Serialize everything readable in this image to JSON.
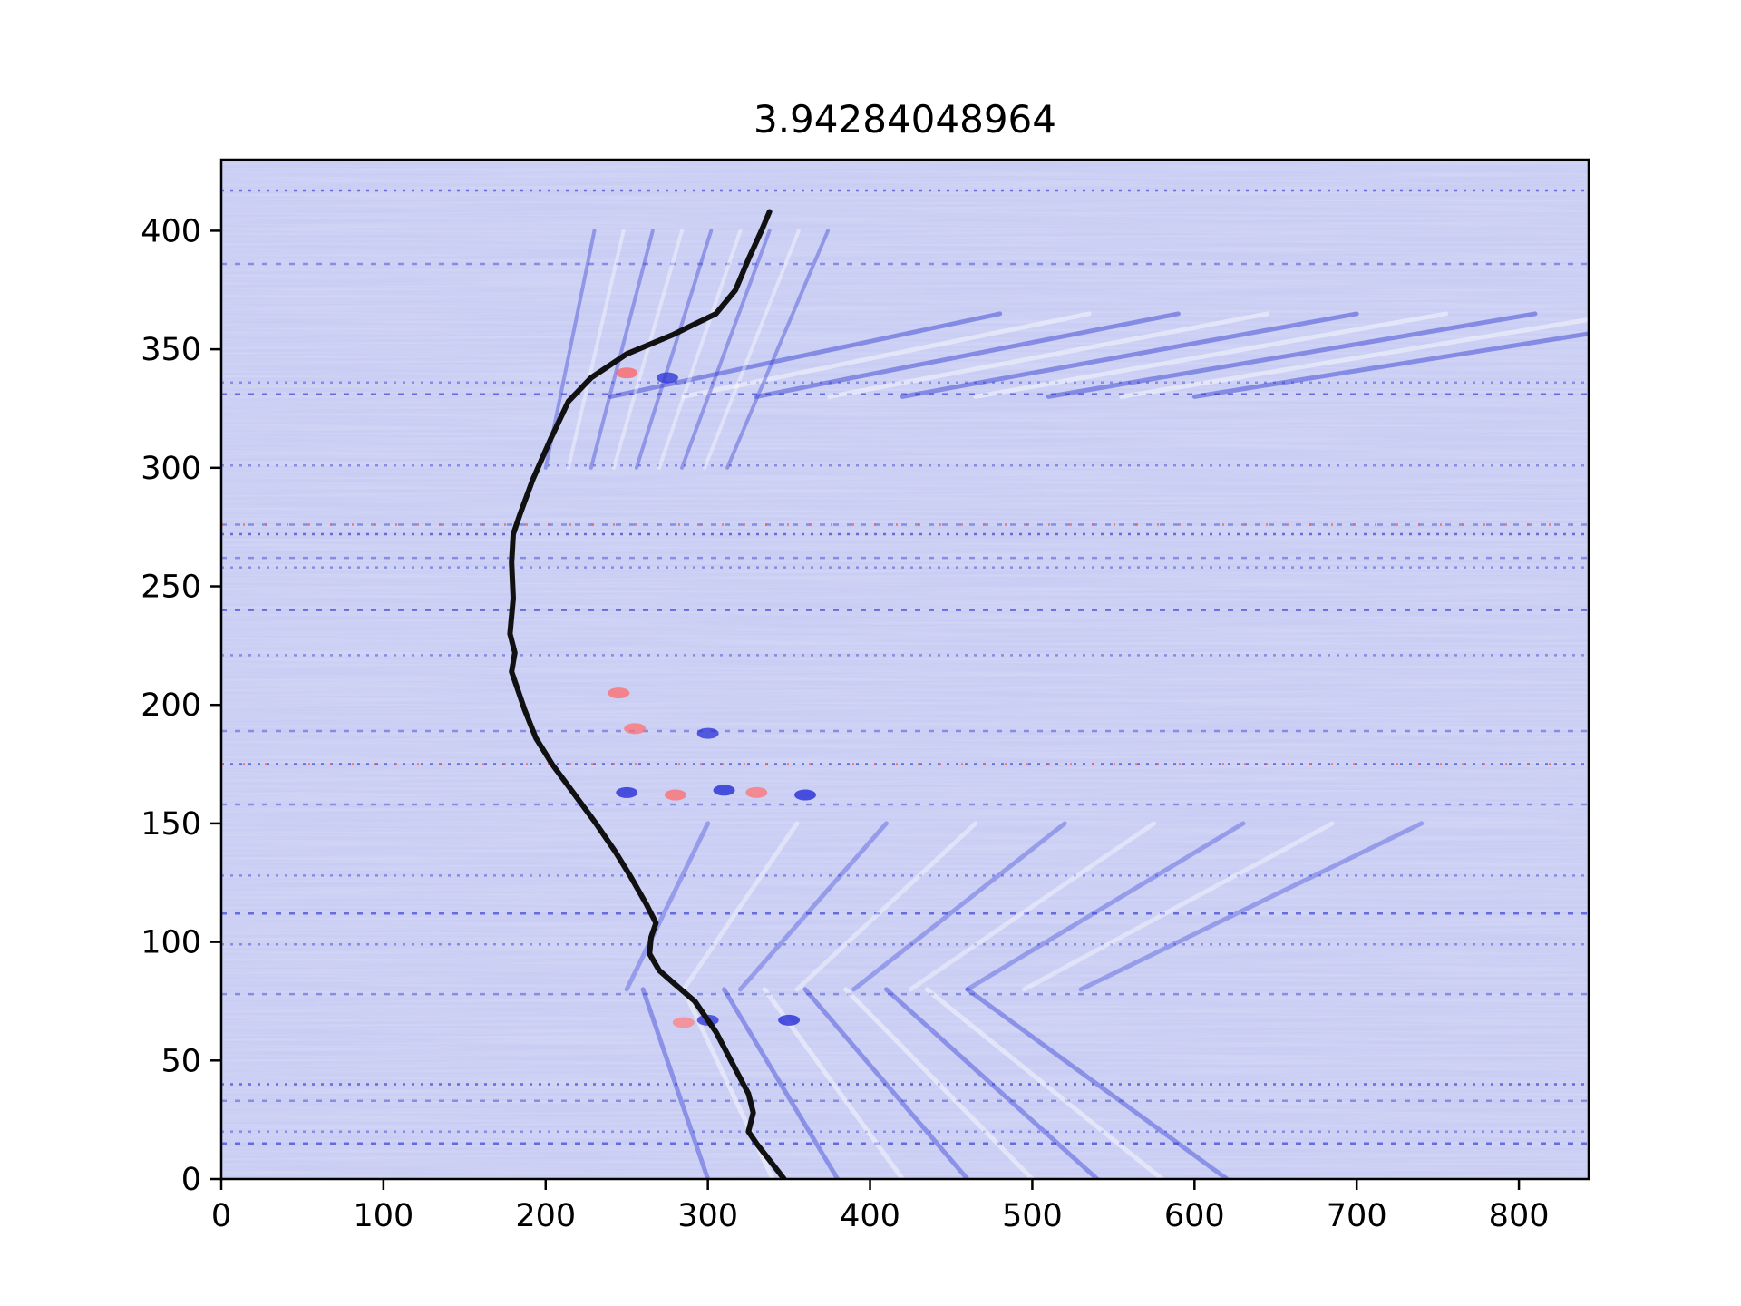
{
  "chart_data": {
    "type": "heatmap",
    "title": "3.94284048964",
    "xlabel": "",
    "ylabel": "",
    "xlim": [
      0,
      843
    ],
    "ylim": [
      0,
      430
    ],
    "x_ticks": [
      "0",
      "100",
      "200",
      "300",
      "400",
      "500",
      "600",
      "700",
      "800"
    ],
    "y_ticks": [
      "0",
      "50",
      "100",
      "150",
      "200",
      "250",
      "300",
      "350",
      "400"
    ],
    "grid": false,
    "legend": "none",
    "colormap": "bwr",
    "colors": {
      "low": "#0000ff",
      "mid": "#ffffff",
      "high": "#ff0000",
      "background": "#c9cdf3",
      "line": "#111111"
    },
    "overlay_line": {
      "type": "line",
      "points": [
        [
          347,
          0
        ],
        [
          338,
          8
        ],
        [
          330,
          15
        ],
        [
          325,
          20
        ],
        [
          328,
          28
        ],
        [
          325,
          36
        ],
        [
          318,
          45
        ],
        [
          305,
          62
        ],
        [
          292,
          75
        ],
        [
          280,
          82
        ],
        [
          270,
          88
        ],
        [
          264,
          95
        ],
        [
          265,
          102
        ],
        [
          268,
          108
        ],
        [
          262,
          116
        ],
        [
          252,
          128
        ],
        [
          243,
          138
        ],
        [
          231,
          150
        ],
        [
          218,
          162
        ],
        [
          204,
          175
        ],
        [
          194,
          186
        ],
        [
          187,
          198
        ],
        [
          182,
          208
        ],
        [
          179,
          214
        ],
        [
          181,
          222
        ],
        [
          178,
          230
        ],
        [
          180,
          245
        ],
        [
          179,
          260
        ],
        [
          180,
          272
        ],
        [
          184,
          280
        ],
        [
          192,
          295
        ],
        [
          203,
          312
        ],
        [
          214,
          328
        ],
        [
          228,
          338
        ],
        [
          250,
          348
        ],
        [
          278,
          356
        ],
        [
          305,
          365
        ],
        [
          317,
          375
        ],
        [
          325,
          388
        ],
        [
          333,
          400
        ],
        [
          338,
          408
        ]
      ]
    }
  }
}
